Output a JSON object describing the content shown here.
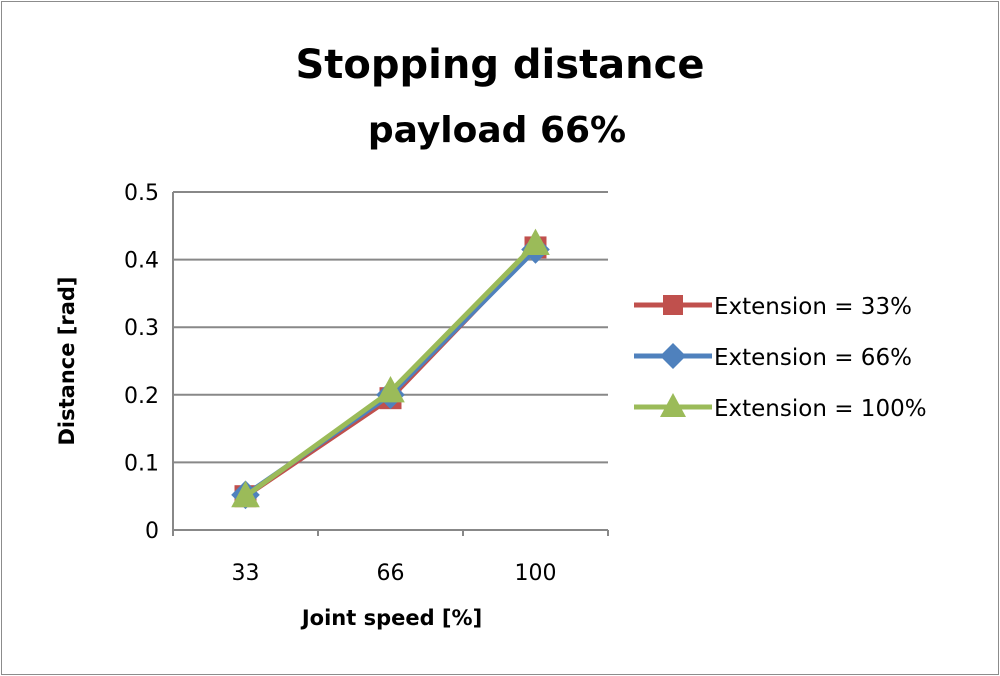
{
  "chart_data": {
    "type": "line",
    "title": "Stopping distance",
    "subtitle": "payload 66%",
    "xlabel": "Joint speed [%]",
    "ylabel": "Distance [rad]",
    "categories": [
      "33",
      "66",
      "100"
    ],
    "ylim": [
      0,
      0.5
    ],
    "yticks": [
      "0",
      "0.1",
      "0.2",
      "0.3",
      "0.4",
      "0.5"
    ],
    "grid": true,
    "legend_position": "right",
    "series": [
      {
        "name": "Extension = 33%",
        "values": [
          0.05,
          0.195,
          0.418
        ],
        "color": "#c0504d",
        "marker": "square"
      },
      {
        "name": "Extension = 66%",
        "values": [
          0.052,
          0.2,
          0.415
        ],
        "color": "#4f81bd",
        "marker": "diamond"
      },
      {
        "name": "Extension = 100%",
        "values": [
          0.05,
          0.205,
          0.423
        ],
        "color": "#9bbb59",
        "marker": "triangle"
      }
    ]
  }
}
